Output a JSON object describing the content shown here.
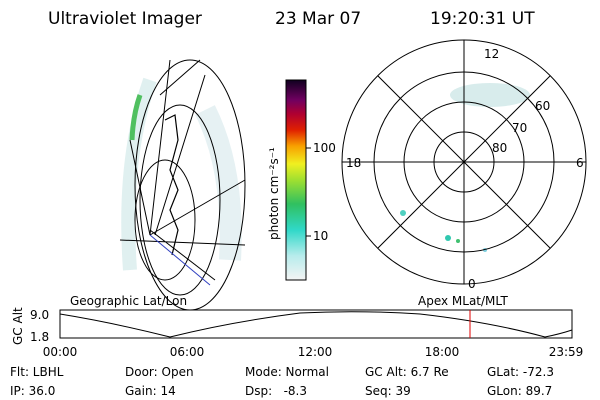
{
  "header": {
    "instrument": "Ultraviolet Imager",
    "date": "23 Mar 07",
    "time": "19:20:31 UT"
  },
  "colorbar": {
    "label": "photon cm⁻²s⁻¹",
    "ticks": [
      "100",
      "10"
    ]
  },
  "polar": {
    "mlt_labels": [
      "12",
      "6",
      "0",
      "18"
    ],
    "lat_labels": [
      "60",
      "70",
      "80"
    ]
  },
  "projections": {
    "left": "Geographic Lat/Lon",
    "right": "Apex MLat/MLT"
  },
  "altitude_plot": {
    "ylabel": "GC Alt",
    "yticks": [
      "9.0",
      "1.8"
    ],
    "xticks": [
      "00:00",
      "06:00",
      "12:00",
      "18:00",
      "23:59"
    ]
  },
  "info": {
    "rows": [
      [
        "Flt: LBHL",
        "Door: Open",
        "Mode: Normal",
        "GC Alt: 6.7 Re",
        "GLat: -72.3"
      ],
      [
        "IP: 36.0",
        "Gain: 14",
        "Dsp:   -8.3",
        "Seq: 39",
        "GLon: 89.7"
      ]
    ]
  }
}
